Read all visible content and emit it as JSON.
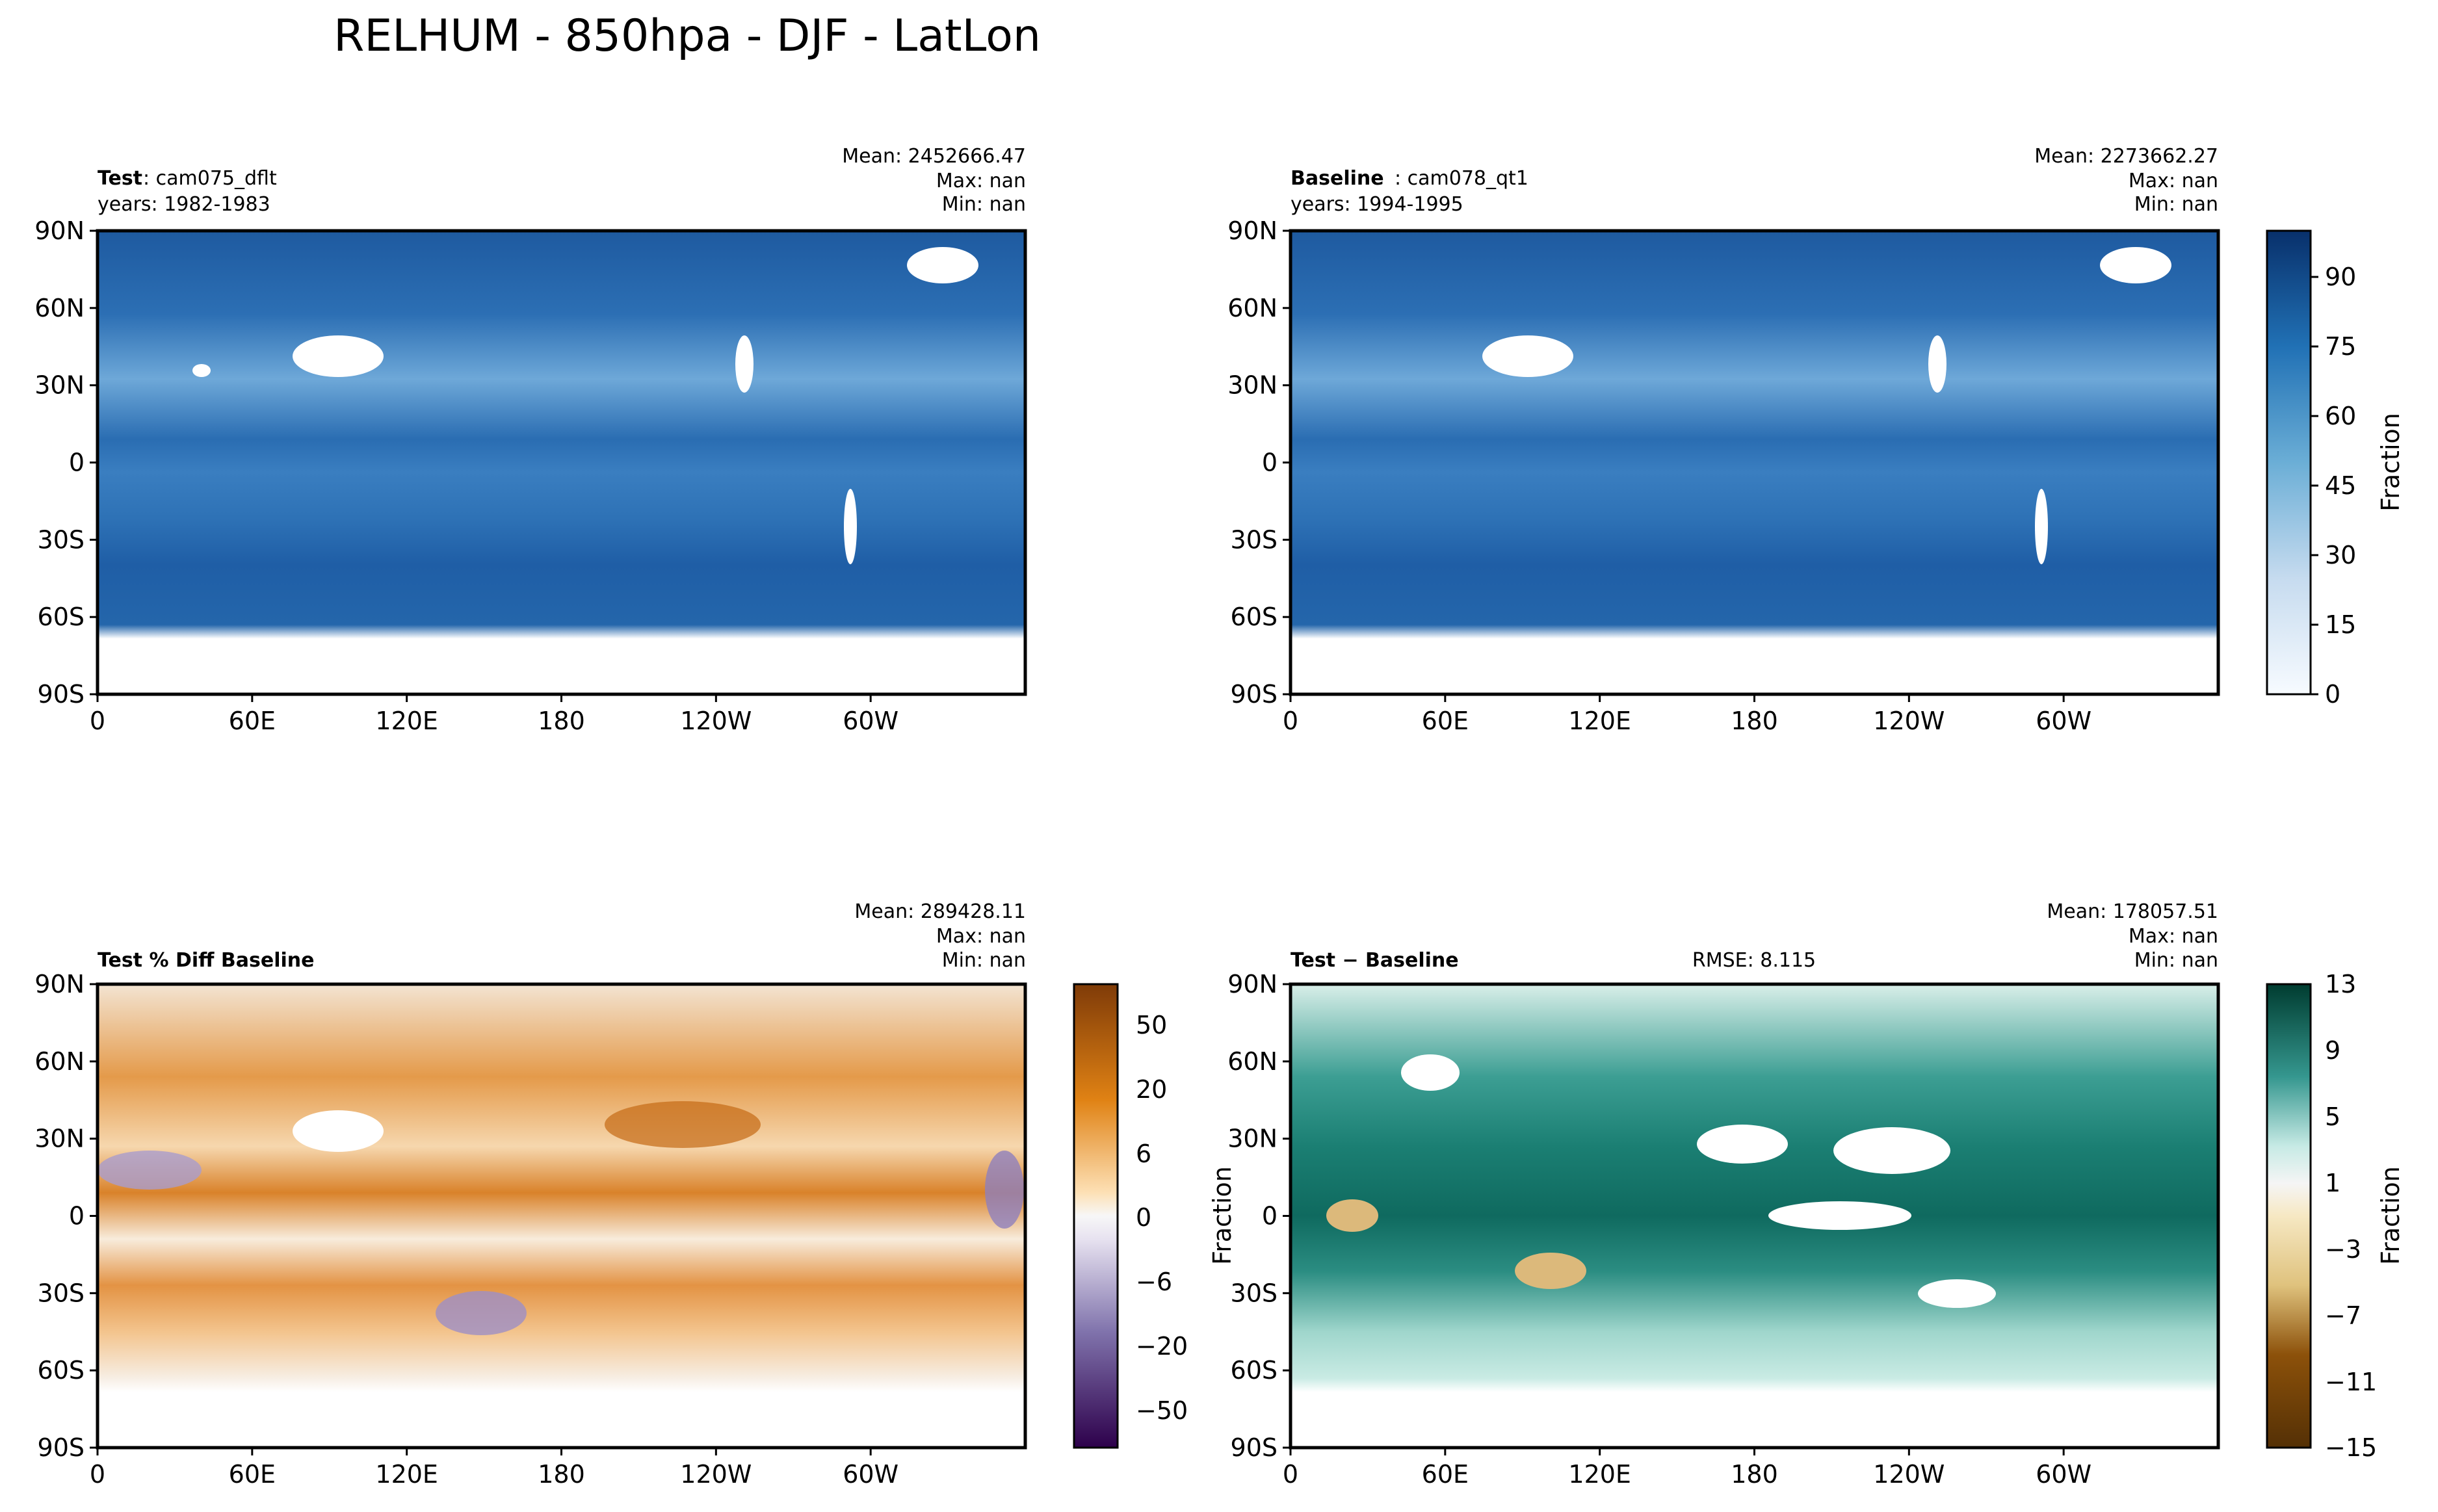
{
  "figure": {
    "title": "RELHUM - 850hpa - DJF - LatLon"
  },
  "axes": {
    "x_ticks": [
      "0",
      "60E",
      "120E",
      "180",
      "120W",
      "60W"
    ],
    "y_ticks": [
      "90N",
      "60N",
      "30N",
      "0",
      "30S",
      "60S",
      "90S"
    ]
  },
  "chart_data": [
    {
      "type": "heatmap",
      "panel": "test",
      "label_bold": "Test",
      "label_rest": ": cam075_dflt",
      "years": "years: 1982-1983",
      "stats": {
        "mean": "Mean: 2452666.47",
        "max": "Max:   nan",
        "min": "Min:   nan"
      },
      "lon_range": [
        0,
        360
      ],
      "lat_range": [
        -90,
        90
      ]
    },
    {
      "type": "heatmap",
      "panel": "baseline",
      "label_bold": "Baseline",
      "label_rest": ": cam078_qt1",
      "years": "years: 1994-1995",
      "stats": {
        "mean": "Mean: 2273662.27",
        "max": "Max:   nan",
        "min": "Min:   nan"
      },
      "lon_range": [
        0,
        360
      ],
      "lat_range": [
        -90,
        90
      ],
      "colorbar": {
        "label": "Fraction",
        "ticks": [
          "0",
          "15",
          "30",
          "45",
          "60",
          "75",
          "90"
        ],
        "range": [
          0,
          100
        ],
        "colors": [
          "#f7fbff",
          "#c6dbef",
          "#6baed6",
          "#2171b5",
          "#08306b"
        ]
      }
    },
    {
      "type": "heatmap",
      "panel": "pct-diff",
      "label_bold": "Test % Diff Baseline",
      "stats": {
        "mean": "Mean: 289428.11",
        "max": "Max:   nan",
        "min": "Min:   nan"
      },
      "lon_range": [
        0,
        360
      ],
      "lat_range": [
        -90,
        90
      ],
      "colorbar": {
        "ticks": [
          "50",
          "20",
          "6",
          "0",
          "−6",
          "−20",
          "−50"
        ],
        "colors": [
          "#2d004b",
          "#8073ac",
          "#f7f7f7",
          "#fdb863",
          "#7f3b08"
        ]
      }
    },
    {
      "type": "heatmap",
      "panel": "diff",
      "label_bold": "Test − Baseline",
      "rmse": "RMSE: 8.115",
      "side_label": "Fraction",
      "stats": {
        "mean": "Mean: 178057.51",
        "max": "Max:   nan",
        "min": "Min:   nan"
      },
      "lon_range": [
        0,
        360
      ],
      "lat_range": [
        -90,
        90
      ],
      "colorbar": {
        "label": "Fraction",
        "ticks": [
          "13",
          "9",
          "5",
          "1",
          "−3",
          "−7",
          "−11",
          "−15"
        ],
        "range": [
          -15,
          13
        ],
        "colors": [
          "#543005",
          "#bf812d",
          "#f6e8c3",
          "#c7eae5",
          "#35978f",
          "#003c30"
        ]
      }
    }
  ],
  "colors": {
    "ocean_blue": "#2b6fb0",
    "diff_teal": "#1a7d72",
    "pct_orange": "#de8a2e"
  }
}
